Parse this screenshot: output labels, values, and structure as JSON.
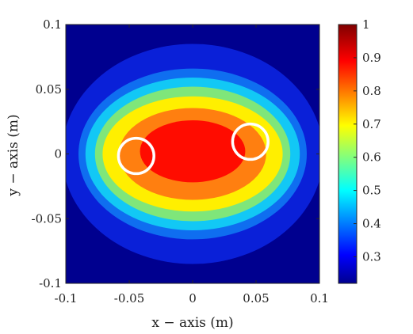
{
  "chart_data": {
    "type": "heatmap",
    "subtype": "filled-contour",
    "xlabel": "x − axis (m)",
    "ylabel": "y − axis (m)",
    "xlim": [
      -0.1,
      0.1
    ],
    "ylim": [
      -0.1,
      0.1
    ],
    "x_ticks": [
      "-0.1",
      "-0.05",
      "0",
      "0.05",
      "0.1"
    ],
    "y_ticks": [
      "0.1",
      "0.05",
      "0",
      "-0.05",
      "-0.1"
    ],
    "colorbar": {
      "range": [
        0.22,
        1.0
      ],
      "ticks": [
        "1",
        "0.9",
        "0.8",
        "0.7",
        "0.6",
        "0.5",
        "0.4",
        "0.3"
      ],
      "colormap": "jet"
    },
    "contours": [
      {
        "level": 0.3,
        "color": "#0a20d8",
        "center": [
          0.0,
          0.0
        ],
        "semi_axes": [
          0.103,
          0.085
        ]
      },
      {
        "level": 0.4,
        "color": "#0f6ef0",
        "center": [
          0.0,
          0.0
        ],
        "semi_axes": [
          0.09,
          0.066
        ]
      },
      {
        "level": 0.5,
        "color": "#12c8f5",
        "center": [
          0.0,
          0.0
        ],
        "semi_axes": [
          0.0845,
          0.059
        ]
      },
      {
        "level": 0.6,
        "color": "#7fe67a",
        "center": [
          0.0,
          0.0
        ],
        "semi_axes": [
          0.077,
          0.052
        ]
      },
      {
        "level": 0.7,
        "color": "#ffef00",
        "center": [
          0.0,
          0.0
        ],
        "semi_axes": [
          0.071,
          0.0445
        ]
      },
      {
        "level": 0.8,
        "color": "#ff7f10",
        "center": [
          0.0,
          0.0
        ],
        "semi_axes": [
          0.058,
          0.0355
        ]
      },
      {
        "level": 0.9,
        "color": "#ff0c00",
        "center": [
          0.0,
          0.002
        ],
        "semi_axes": [
          0.0415,
          0.024
        ]
      }
    ],
    "background_color": "#00008f",
    "markers": [
      {
        "shape": "circle",
        "x": -0.0445,
        "y": -0.0015,
        "radius": 0.014,
        "color": "#ffffff"
      },
      {
        "shape": "circle",
        "x": 0.0455,
        "y": 0.0095,
        "radius": 0.014,
        "color": "#ffffff"
      }
    ]
  }
}
